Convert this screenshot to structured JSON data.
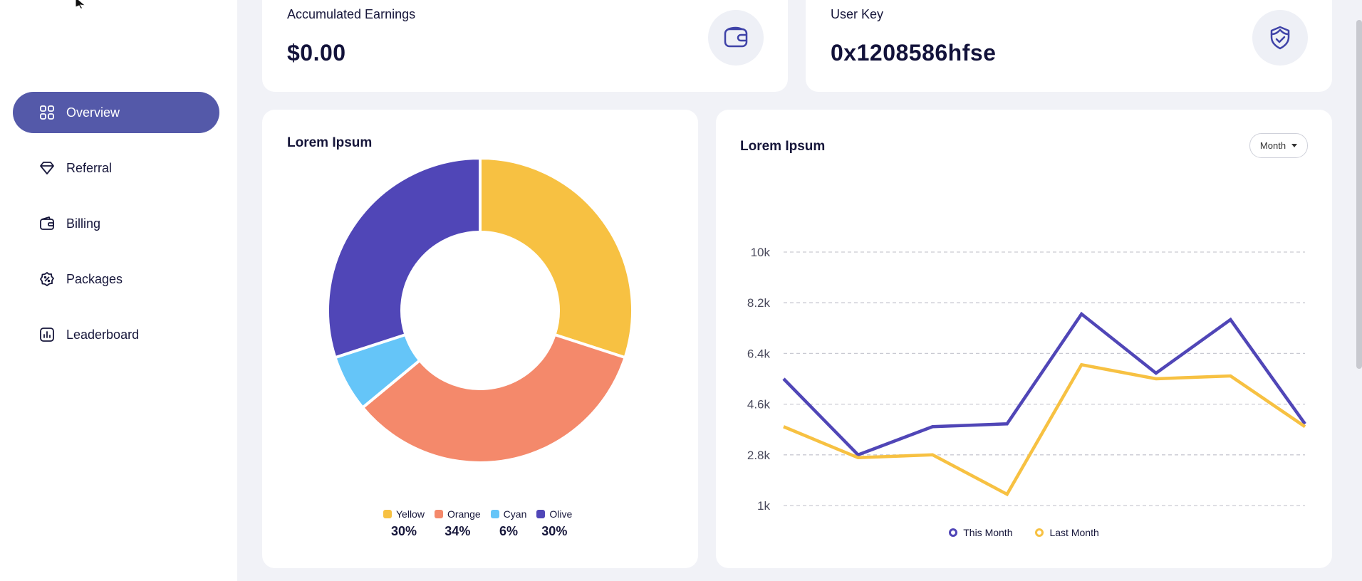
{
  "sidebar": {
    "items": [
      {
        "label": "Overview",
        "icon": "grid-icon",
        "active": true
      },
      {
        "label": "Referral",
        "icon": "diamond-icon",
        "active": false
      },
      {
        "label": "Billing",
        "icon": "wallet-icon",
        "active": false
      },
      {
        "label": "Packages",
        "icon": "discount-badge-icon",
        "active": false
      },
      {
        "label": "Leaderboard",
        "icon": "chart-box-icon",
        "active": false
      }
    ]
  },
  "stats": {
    "earnings": {
      "label": "Accumulated Earnings",
      "value": "$0.00",
      "icon": "wallet-icon"
    },
    "user_key": {
      "label": "User Key",
      "value": "0x1208586hfse",
      "icon": "shield-check-icon"
    }
  },
  "pie_card": {
    "title": "Lorem Ipsum"
  },
  "line_card": {
    "title": "Lorem Ipsum",
    "period_select": "Month"
  },
  "colors": {
    "accent": "#5459a9",
    "yellow": "#f7c142",
    "orange": "#f4896b",
    "cyan": "#65c5f8",
    "olive": "#5046b7"
  },
  "chart_data": [
    {
      "type": "pie",
      "title": "Lorem Ipsum",
      "categories": [
        "Yellow",
        "Orange",
        "Cyan",
        "Olive"
      ],
      "values": [
        30,
        34,
        6,
        30
      ],
      "labels": [
        "30%",
        "34%",
        "6%",
        "30%"
      ],
      "colors": [
        "#f7c142",
        "#f4896b",
        "#65c5f8",
        "#5046b7"
      ],
      "donut": true,
      "legend": "bottom"
    },
    {
      "type": "line",
      "title": "Lorem Ipsum",
      "yticks": [
        "10k",
        "8.2k",
        "6.4k",
        "4.6k",
        "2.8k",
        "1k"
      ],
      "ytick_values": [
        10000,
        8200,
        6400,
        4600,
        2800,
        1000
      ],
      "ylim": [
        1000,
        10000
      ],
      "grid": true,
      "legend": "bottom",
      "series": [
        {
          "name": "This Month",
          "color": "#5046b7",
          "values": [
            5500,
            2800,
            3800,
            3900,
            7800,
            5700,
            7600,
            3900
          ]
        },
        {
          "name": "Last Month",
          "color": "#f7c142",
          "values": [
            3800,
            2700,
            2800,
            1400,
            6000,
            5500,
            5600,
            3800
          ]
        }
      ]
    }
  ]
}
